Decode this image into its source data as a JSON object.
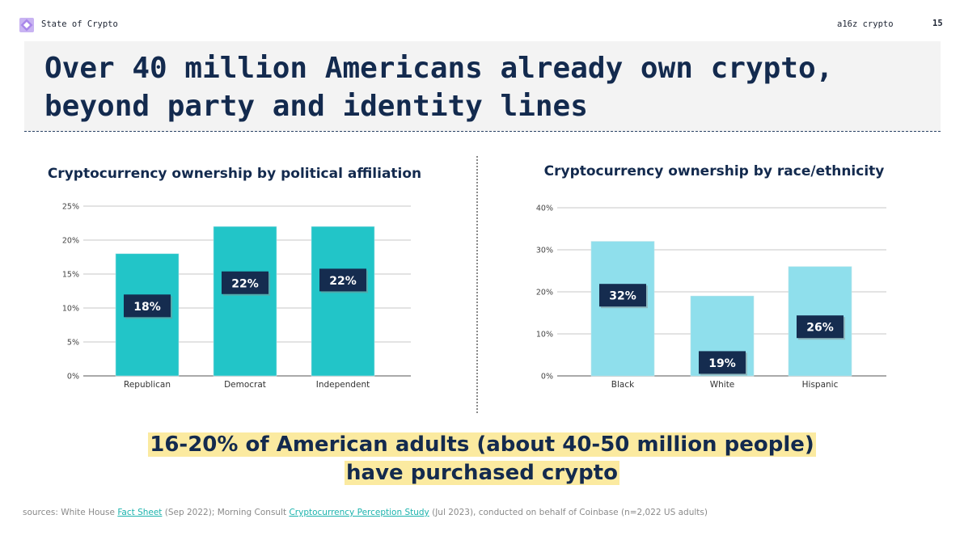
{
  "header": {
    "brand": "State of Crypto",
    "org": "a16z crypto",
    "page_number": "15"
  },
  "title": "Over 40 million Americans already own crypto,\nbeyond party and identity lines",
  "headline": {
    "line1": "16-20% of American adults (about 40-50 million people)",
    "line2": "have purchased crypto"
  },
  "sources": {
    "prefix": "sources: White House ",
    "link1": "Fact Sheet",
    "mid": " (Sep 2022); Morning Consult ",
    "link2": "Cryptocurrency Perception Study",
    "suffix": " (Jul 2023), conducted on behalf of Coinbase (n=2,022 US adults)"
  },
  "colors": {
    "political_bar": "#22c5c8",
    "race_bar": "#8fdfec",
    "label_box": "#152c4f",
    "highlight": "#fbeaa0"
  },
  "chart_data": [
    {
      "type": "bar",
      "title": "Cryptocurrency ownership by political affiliation",
      "categories": [
        "Republican",
        "Democrat",
        "Independent"
      ],
      "values": [
        18,
        22,
        22
      ],
      "data_labels": [
        "18%",
        "22%",
        "22%"
      ],
      "label_at": [
        10.2,
        13.6,
        14.0
      ],
      "ylim": [
        0,
        25
      ],
      "yticks": [
        0,
        5,
        10,
        15,
        20,
        25
      ],
      "ytick_labels": [
        "0%",
        "5%",
        "10%",
        "15%",
        "20%",
        "25%"
      ],
      "grid": true,
      "legend": "none"
    },
    {
      "type": "bar",
      "title": "Cryptocurrency ownership by race/ethnicity",
      "categories": [
        "Black",
        "White",
        "Hispanic"
      ],
      "values": [
        32,
        19,
        26
      ],
      "data_labels": [
        "32%",
        "19%",
        "26%"
      ],
      "label_at": [
        19.0,
        3.0,
        11.5
      ],
      "ylim": [
        0,
        40
      ],
      "yticks": [
        0,
        10,
        20,
        30,
        40
      ],
      "ytick_labels": [
        "0%",
        "10%",
        "20%",
        "30%",
        "40%"
      ],
      "grid": true,
      "legend": "none"
    }
  ]
}
